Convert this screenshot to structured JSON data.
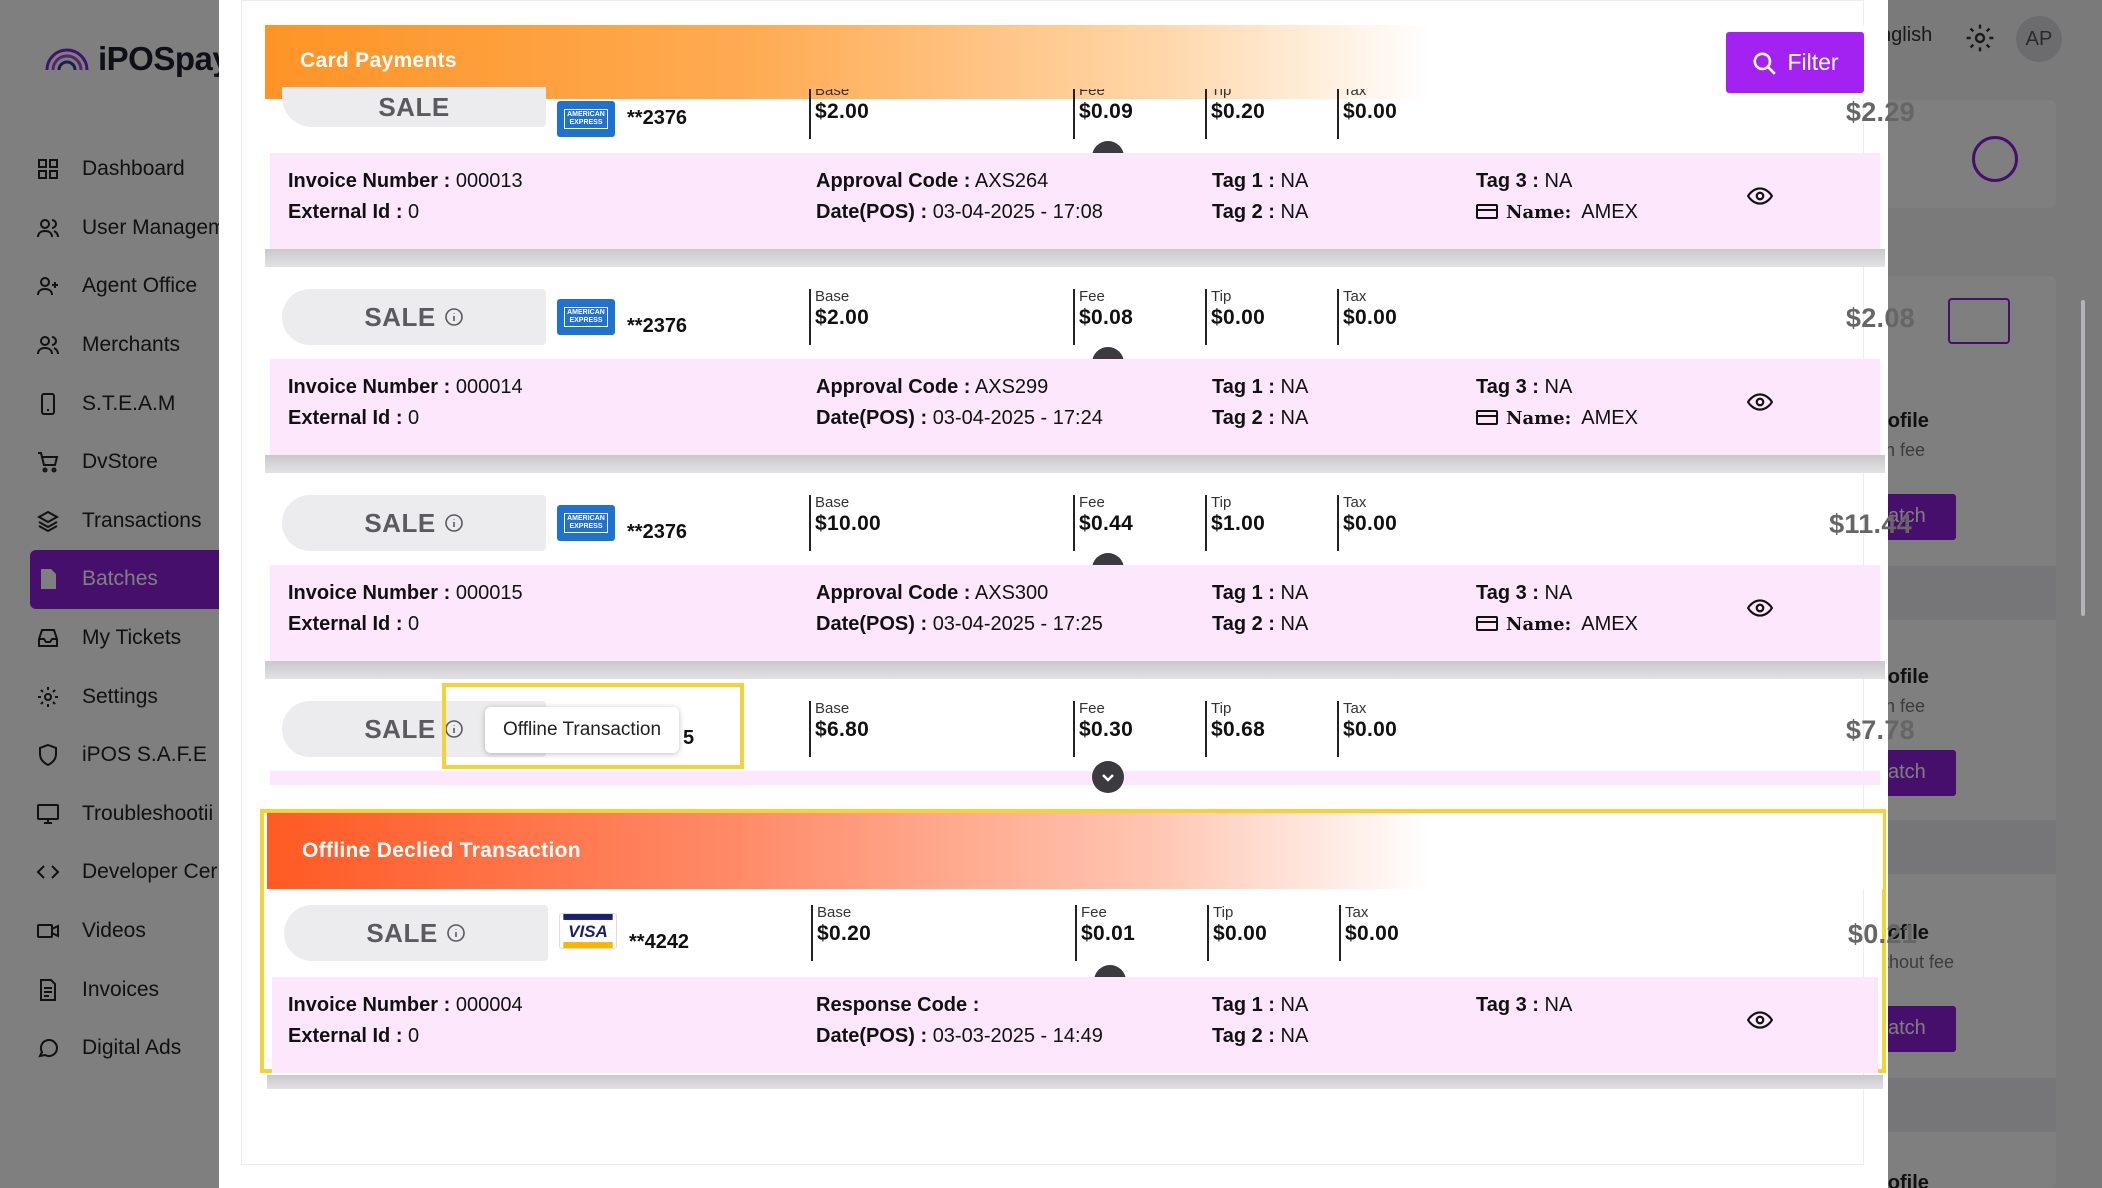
{
  "app": {
    "brand": "iPOSpay",
    "language": "nglish",
    "avatar": "AP"
  },
  "sidebar": {
    "items": [
      {
        "label": "Dashboard",
        "icon": "dashboard-icon"
      },
      {
        "label": "User Managem",
        "icon": "users-icon"
      },
      {
        "label": "Agent Office",
        "icon": "user-plus-icon"
      },
      {
        "label": "Merchants",
        "icon": "users-icon"
      },
      {
        "label": "S.T.E.A.M",
        "icon": "phone-icon"
      },
      {
        "label": "DvStore",
        "icon": "cart-icon"
      },
      {
        "label": "Transactions",
        "icon": "layers-icon"
      },
      {
        "label": "Batches",
        "icon": "file-icon",
        "active": true
      },
      {
        "label": "My Tickets",
        "icon": "inbox-icon"
      },
      {
        "label": "Settings",
        "icon": "gear-icon"
      },
      {
        "label": "iPOS S.A.F.E",
        "icon": "shield-icon"
      },
      {
        "label": "Troubleshootii",
        "icon": "monitor-icon"
      },
      {
        "label": "Developer Cer",
        "icon": "code-icon"
      },
      {
        "label": "Videos",
        "icon": "video-icon"
      },
      {
        "label": "Invoices",
        "icon": "invoice-icon"
      },
      {
        "label": "Digital Ads",
        "icon": "chat-icon"
      }
    ]
  },
  "background": {
    "profiles": [
      {
        "title": "rofile",
        "fee": "th fee",
        "button": "atch"
      },
      {
        "title": "rofile",
        "fee": "th fee",
        "button": "atch"
      },
      {
        "title": "rofile",
        "fee": "ithout fee",
        "button": "atch"
      },
      {
        "title": "rofile"
      }
    ]
  },
  "modal": {
    "card_section_title": "Card Payments",
    "filter_label": "Filter",
    "offline_section_title": "Offline Declied Transaction",
    "tooltip": "Offline Transaction",
    "labels": {
      "sale": "SALE",
      "base": "Base",
      "fee": "Fee",
      "tip": "Tip",
      "tax": "Tax",
      "invoice": "Invoice Number :",
      "external": "External Id :",
      "approval": "Approval Code :",
      "response": "Response Code :",
      "date": "Date(POS) :",
      "tag1": "Tag 1 :",
      "tag2": "Tag 2 :",
      "tag3": "Tag 3 :",
      "name": "Name:"
    },
    "transactions": [
      {
        "card_brand": "AMEX",
        "card": "**2376",
        "base": "$2.00",
        "fee": "$0.09",
        "tip": "$0.20",
        "tax": "$0.00",
        "total": "$2.29",
        "invoice": "000013",
        "external": "0",
        "approval": "AXS264",
        "date": "03-04-2025 - 17:08",
        "tag1": "NA",
        "tag2": "NA",
        "tag3": "NA",
        "name": "AMEX"
      },
      {
        "card_brand": "AMEX",
        "card": "**2376",
        "base": "$2.00",
        "fee": "$0.08",
        "tip": "$0.00",
        "tax": "$0.00",
        "total": "$2.08",
        "invoice": "000014",
        "external": "0",
        "approval": "AXS299",
        "date": "03-04-2025 - 17:24",
        "tag1": "NA",
        "tag2": "NA",
        "tag3": "NA",
        "name": "AMEX"
      },
      {
        "card_brand": "AMEX",
        "card": "**2376",
        "base": "$10.00",
        "fee": "$0.44",
        "tip": "$1.00",
        "tax": "$0.00",
        "total": "$11.44",
        "invoice": "000015",
        "external": "0",
        "approval": "AXS300",
        "date": "03-04-2025 - 17:25",
        "tag1": "NA",
        "tag2": "NA",
        "tag3": "NA",
        "name": "AMEX"
      },
      {
        "card_tail": "5",
        "base": "$6.80",
        "fee": "$0.30",
        "tip": "$0.68",
        "tax": "$0.00",
        "total": "$7.78"
      }
    ],
    "offline": {
      "card_brand": "VISA",
      "card": "**4242",
      "base": "$0.20",
      "fee": "$0.01",
      "tip": "$0.00",
      "tax": "$0.00",
      "total": "$0.21",
      "invoice": "000004",
      "external": "0",
      "response": "",
      "date": "03-03-2025 - 14:49",
      "tag1": "NA",
      "tag2": "NA",
      "tag3": "NA"
    }
  },
  "colors": {
    "accent": "#8b1fd6",
    "filter_button": "#a322f2",
    "card_header": "#fe9426",
    "offline_header": "#ff5a24",
    "detail_bg": "#fde7fd",
    "highlight": "#f5d23a"
  }
}
